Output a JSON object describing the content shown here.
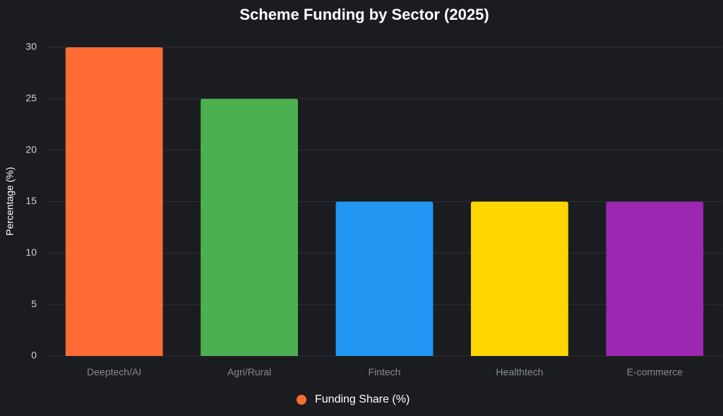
{
  "chart_data": {
    "type": "bar",
    "title": "Scheme Funding by Sector (2025)",
    "y_label": "Percentage (%)",
    "categories": [
      "Deeptech/AI",
      "Agri/Rural",
      "Fintech",
      "Healthtech",
      "E-commerce"
    ],
    "series": [
      {
        "name": "Funding Share (%)",
        "colors": [
          "#ff6b35",
          "#4caf50",
          "#2196f3",
          "#ffd600",
          "#9c27b0"
        ],
        "values": [
          30,
          25,
          15,
          15,
          15
        ]
      }
    ],
    "ylim": [
      0,
      30
    ],
    "yticks": [
      0,
      5,
      10,
      15,
      20,
      25,
      30
    ],
    "grid": true,
    "legend": "bottom"
  }
}
